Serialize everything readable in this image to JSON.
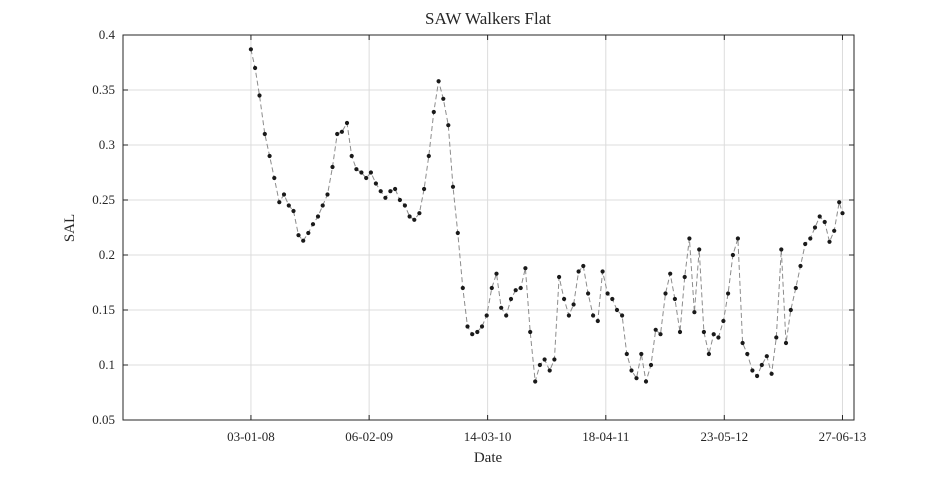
{
  "chart_data": {
    "type": "line",
    "title": "SAW Walkers Flat",
    "xlabel": "Date",
    "ylabel": "SAL",
    "ylim": [
      0.05,
      0.4
    ],
    "y_ticks": [
      "0.05",
      "0.1",
      "0.15",
      "0.2",
      "0.25",
      "0.3",
      "0.35",
      "0.4"
    ],
    "x_ticks": [
      "03-01-08",
      "06-02-09",
      "14-03-10",
      "18-04-11",
      "23-05-12",
      "27-06-13"
    ],
    "xlim": [
      "2006-10-27",
      "2013-08-05"
    ],
    "grid": true,
    "line_style": "dashed",
    "line_color": "#8c8c8c",
    "marker_color": "#1a1a1a",
    "series": [
      {
        "x": [
          "2008-01-03",
          "2008-01-17",
          "2008-02-01",
          "2008-02-19",
          "2008-03-06",
          "2008-03-22",
          "2008-04-08",
          "2008-04-24",
          "2008-05-10",
          "2008-05-26",
          "2008-06-12",
          "2008-06-28",
          "2008-07-15",
          "2008-07-31",
          "2008-08-17",
          "2008-09-02",
          "2008-09-18",
          "2008-10-05",
          "2008-10-21",
          "2008-11-06",
          "2008-11-23",
          "2008-12-09",
          "2008-12-25",
          "2009-01-11",
          "2009-01-27",
          "2009-02-12",
          "2009-03-01",
          "2009-03-17",
          "2009-04-02",
          "2009-04-19",
          "2009-05-05",
          "2009-05-21",
          "2009-06-07",
          "2009-06-23",
          "2009-07-09",
          "2009-07-26",
          "2009-08-11",
          "2009-08-27",
          "2009-09-13",
          "2009-09-29",
          "2009-10-15",
          "2009-11-01",
          "2009-11-17",
          "2009-12-03",
          "2009-12-20",
          "2010-01-05",
          "2010-01-21",
          "2010-02-07",
          "2010-02-23",
          "2010-03-11",
          "2010-03-28",
          "2010-04-13",
          "2010-04-29",
          "2010-05-16",
          "2010-06-01",
          "2010-06-17",
          "2010-07-04",
          "2010-07-20",
          "2010-08-05",
          "2010-08-22",
          "2010-09-07",
          "2010-09-23",
          "2010-10-10",
          "2010-10-26",
          "2010-11-11",
          "2010-11-28",
          "2010-12-14",
          "2010-12-30",
          "2011-01-16",
          "2011-02-01",
          "2011-02-17",
          "2011-03-06",
          "2011-03-22",
          "2011-04-07",
          "2011-04-24",
          "2011-05-10",
          "2011-05-26",
          "2011-06-12",
          "2011-06-28",
          "2011-07-14",
          "2011-07-31",
          "2011-08-16",
          "2011-09-01",
          "2011-09-18",
          "2011-10-04",
          "2011-10-20",
          "2011-11-06",
          "2011-11-22",
          "2011-12-08",
          "2011-12-25",
          "2012-01-10",
          "2012-01-26",
          "2012-02-12",
          "2012-02-28",
          "2012-03-15",
          "2012-04-01",
          "2012-04-17",
          "2012-05-03",
          "2012-05-20",
          "2012-06-05",
          "2012-06-21",
          "2012-07-08",
          "2012-07-24",
          "2012-08-09",
          "2012-08-26",
          "2012-09-11",
          "2012-09-27",
          "2012-10-14",
          "2012-10-30",
          "2012-11-15",
          "2012-12-02",
          "2012-12-18",
          "2013-01-03",
          "2013-01-20",
          "2013-02-05",
          "2013-02-21",
          "2013-03-10",
          "2013-03-26",
          "2013-04-11",
          "2013-04-28",
          "2013-05-14",
          "2013-05-30",
          "2013-06-16",
          "2013-06-27"
        ],
        "values": [
          0.387,
          0.37,
          0.345,
          0.31,
          0.29,
          0.27,
          0.248,
          0.255,
          0.245,
          0.24,
          0.218,
          0.213,
          0.22,
          0.228,
          0.235,
          0.245,
          0.255,
          0.28,
          0.31,
          0.312,
          0.32,
          0.29,
          0.278,
          0.275,
          0.27,
          0.275,
          0.265,
          0.258,
          0.252,
          0.258,
          0.26,
          0.25,
          0.245,
          0.235,
          0.232,
          0.238,
          0.26,
          0.29,
          0.33,
          0.358,
          0.342,
          0.318,
          0.262,
          0.22,
          0.17,
          0.135,
          0.128,
          0.13,
          0.135,
          0.145,
          0.17,
          0.183,
          0.152,
          0.145,
          0.16,
          0.168,
          0.17,
          0.188,
          0.13,
          0.085,
          0.1,
          0.105,
          0.095,
          0.105,
          0.18,
          0.16,
          0.145,
          0.155,
          0.185,
          0.19,
          0.165,
          0.145,
          0.14,
          0.185,
          0.165,
          0.16,
          0.15,
          0.145,
          0.11,
          0.095,
          0.088,
          0.11,
          0.085,
          0.1,
          0.132,
          0.128,
          0.165,
          0.183,
          0.16,
          0.13,
          0.18,
          0.215,
          0.148,
          0.205,
          0.13,
          0.11,
          0.128,
          0.125,
          0.14,
          0.165,
          0.2,
          0.215,
          0.12,
          0.11,
          0.095,
          0.09,
          0.1,
          0.108,
          0.092,
          0.125,
          0.205,
          0.12,
          0.15,
          0.17,
          0.19,
          0.21,
          0.215,
          0.225,
          0.235,
          0.23,
          0.212,
          0.222,
          0.248,
          0.238
        ]
      }
    ]
  }
}
